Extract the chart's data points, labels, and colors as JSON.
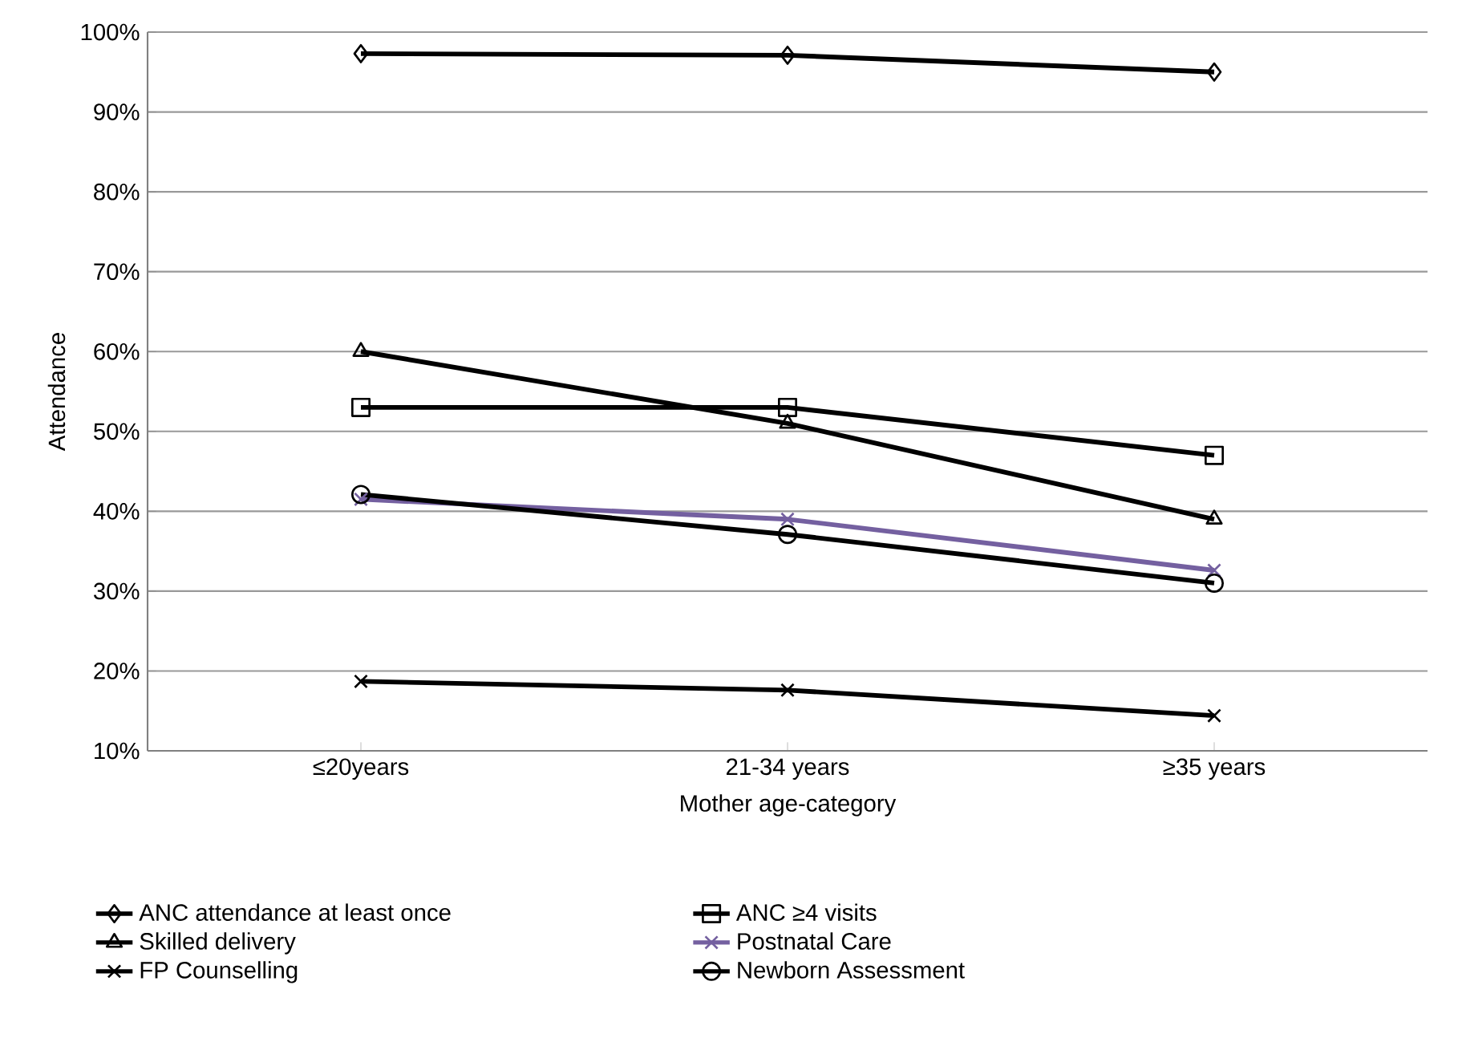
{
  "chart_data": {
    "type": "line",
    "xlabel": "Mother age-category",
    "ylabel": "Attendance",
    "categories": [
      "≤20years",
      "21-34 years",
      "≥35 years"
    ],
    "series": [
      {
        "name": "ANC attendance at least once",
        "color": "#000000",
        "marker": "diamond",
        "values": [
          97.3,
          97.1,
          95.0
        ]
      },
      {
        "name": "ANC ≥4 visits",
        "color": "#000000",
        "marker": "square",
        "values": [
          53.0,
          53.0,
          47.0
        ]
      },
      {
        "name": "Skilled delivery",
        "color": "#000000",
        "marker": "triangle",
        "values": [
          60.0,
          51.0,
          39.0
        ]
      },
      {
        "name": "Postnatal Care",
        "color": "#7460a0",
        "marker": "cross",
        "values": [
          41.5,
          39.0,
          32.6
        ]
      },
      {
        "name": "FP Counselling",
        "color": "#000000",
        "marker": "cross",
        "values": [
          18.7,
          17.6,
          14.4
        ]
      },
      {
        "name": "Newborn Assessment",
        "color": "#000000",
        "marker": "circle",
        "values": [
          42.1,
          37.1,
          31.0
        ]
      }
    ],
    "ylim": [
      10,
      100
    ],
    "yticks": [
      {
        "value": 10,
        "label": "10%"
      },
      {
        "value": 20,
        "label": "20%"
      },
      {
        "value": 30,
        "label": "30%"
      },
      {
        "value": 40,
        "label": "40%"
      },
      {
        "value": 50,
        "label": "50%"
      },
      {
        "value": 60,
        "label": "60%"
      },
      {
        "value": 70,
        "label": "70%"
      },
      {
        "value": 80,
        "label": "80%"
      },
      {
        "value": 90,
        "label": "90%"
      },
      {
        "value": 100,
        "label": "100%"
      }
    ],
    "grid": "y",
    "legend": "bottom",
    "line_style": "solid"
  }
}
